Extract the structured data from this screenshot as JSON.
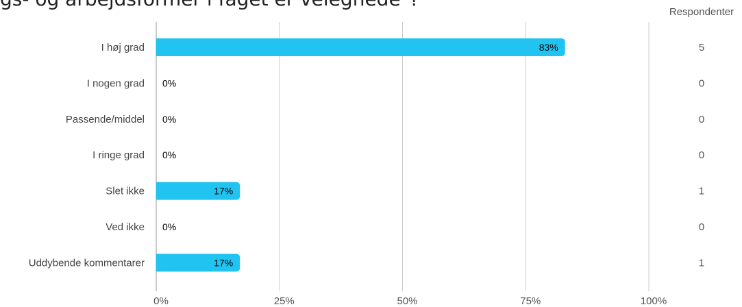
{
  "title": "gs- og arbejdsformer i faget er velegnede\"?",
  "respondents_header": "Respondenter",
  "colors": {
    "bar": "#21c3f0",
    "grid": "#cccccc",
    "axis": "#999999"
  },
  "chart_data": {
    "type": "bar",
    "orientation": "horizontal",
    "categories": [
      "I høj grad",
      "I nogen grad",
      "Passende/middel",
      "I ringe grad",
      "Slet ikke",
      "Ved ikke",
      "Uddybende kommentarer"
    ],
    "values": [
      83,
      0,
      0,
      0,
      17,
      0,
      17
    ],
    "value_labels": [
      "83%",
      "0%",
      "0%",
      "0%",
      "17%",
      "0%",
      "17%"
    ],
    "respondents": [
      "5",
      "0",
      "0",
      "0",
      "1",
      "0",
      "1"
    ],
    "xlim": [
      0,
      100
    ],
    "xticks": [
      0,
      25,
      50,
      75,
      100
    ],
    "xtick_labels": [
      "0%",
      "25%",
      "50%",
      "75%",
      "100%"
    ],
    "grid": true
  }
}
